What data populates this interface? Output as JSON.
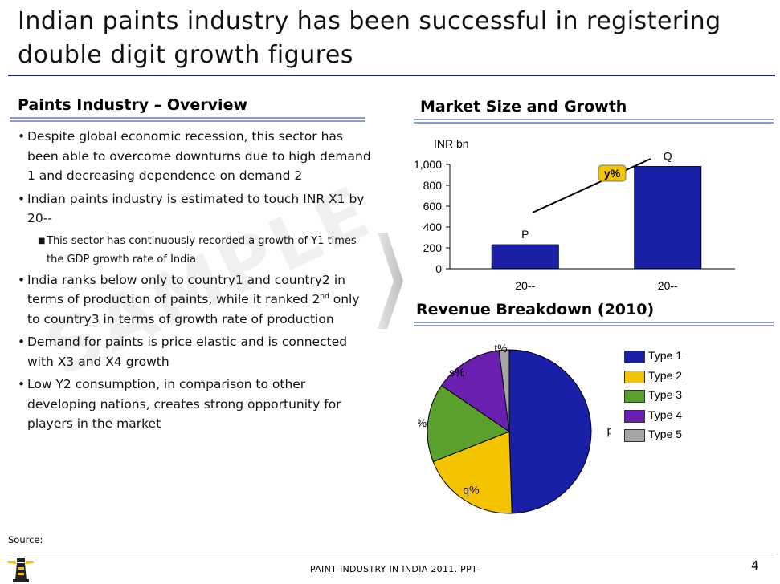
{
  "slide": {
    "title": "Indian paints industry has been successful in registering double digit growth figures",
    "watermark": "SAMPLE",
    "source_label": "Source:",
    "footer_text": "PAINT INDUSTRY IN INDIA 2011. PPT",
    "page_number": "4"
  },
  "overview": {
    "heading": "Paints Industry – Overview",
    "bullets": [
      {
        "text": "Despite global economic recession, this sector has been able to overcome downturns due to high demand 1 and decreasing dependence on demand 2"
      },
      {
        "text": "Indian paints industry is estimated to touch INR X1 by 20--"
      },
      {
        "sub": "This sector has continuously recorded a growth of Y1 times the GDP growth rate of India"
      },
      {
        "text_a": "India ranks below only to country1 and country2 in terms of production of paints, while it ranked 2",
        "sup": "nd",
        "text_b": " only to country3 in terms of growth rate of production"
      },
      {
        "text": "Demand for paints is price elastic and is connected with X3 and X4 growth"
      },
      {
        "text": "Low Y2 consumption, in comparison to other developing nations,  creates strong opportunity  for players in the market"
      }
    ]
  },
  "market": {
    "heading": "Market Size and Growth",
    "unit_label": "INR bn",
    "growth_label": "y%"
  },
  "revenue": {
    "heading": "Revenue Breakdown (2010)"
  },
  "chart_data": [
    {
      "type": "bar",
      "title": "Market Size and Growth",
      "ylabel": "INR bn",
      "categories": [
        "20--",
        "20--"
      ],
      "values": [
        230,
        980
      ],
      "data_labels": [
        "P",
        "Q"
      ],
      "ylim": [
        0,
        1000
      ],
      "yticks": [
        0,
        200,
        400,
        600,
        800,
        1000
      ],
      "ytick_labels": [
        "0",
        "200",
        "400",
        "600",
        "800",
        "1,000"
      ],
      "annotation": "y%",
      "bar_color": "#1a1fa8"
    },
    {
      "type": "pie",
      "title": "Revenue Breakdown (2010)",
      "slices": [
        {
          "name": "Type 1",
          "label": "p%",
          "value": 49.5,
          "color": "#1a1fa8"
        },
        {
          "name": "Type 2",
          "label": "q%",
          "value": 19.5,
          "color": "#f5c400"
        },
        {
          "name": "Type 3",
          "label": "r%",
          "value": 15.5,
          "color": "#5aa02c"
        },
        {
          "name": "Type 4",
          "label": "s%",
          "value": 13.5,
          "color": "#6a1fb0"
        },
        {
          "name": "Type 5",
          "label": "t%",
          "value": 2.0,
          "color": "#a6a6a6"
        }
      ],
      "legend": [
        "Type 1",
        "Type 2",
        "Type 3",
        "Type 4",
        "Type 5"
      ]
    }
  ]
}
